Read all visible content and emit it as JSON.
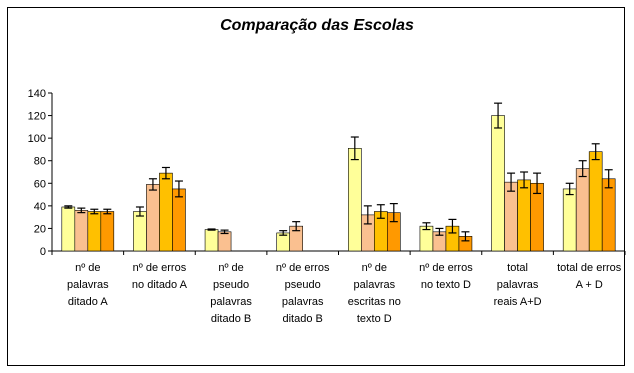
{
  "chart_data": {
    "type": "bar",
    "title": "Comparação das Escolas",
    "xlabel": "",
    "ylabel": "",
    "ylim": [
      0,
      140
    ],
    "yticks": [
      "0",
      "20",
      "40",
      "60",
      "80",
      "100",
      "120",
      "140"
    ],
    "grid": false,
    "legend": "none",
    "categories": [
      [
        "nº de",
        "palavras",
        "ditado A"
      ],
      [
        "nº de erros",
        "no ditado A"
      ],
      [
        "nº de",
        "pseudo",
        "palavras",
        "ditado B"
      ],
      [
        "nº de erros",
        "pseudo",
        "palavras",
        "ditado B"
      ],
      [
        "nº de",
        "palavras",
        "escritas no",
        "texto D"
      ],
      [
        "nº de erros",
        "no texto D"
      ],
      [
        "total",
        "palavras",
        "reais A+D"
      ],
      [
        "total de erros",
        "A + D"
      ]
    ],
    "series": [
      {
        "color": "#ffff99",
        "values": [
          39,
          35,
          19,
          16,
          91,
          22,
          120,
          55
        ],
        "errors": [
          1,
          4,
          0.5,
          2,
          10,
          3,
          11,
          5
        ]
      },
      {
        "color": "#fac090",
        "values": [
          36,
          59,
          17,
          22,
          32,
          17,
          61,
          73
        ],
        "errors": [
          2,
          5,
          1.5,
          4,
          8,
          3,
          8,
          7
        ]
      },
      {
        "color": "#ffc000",
        "values": [
          35,
          69,
          0,
          0,
          35,
          22,
          63,
          88
        ],
        "errors": [
          2,
          5,
          0,
          0,
          6,
          6,
          7,
          7
        ]
      },
      {
        "color": "#ff9900",
        "values": [
          35,
          55,
          0,
          0,
          34,
          13,
          60,
          64
        ],
        "errors": [
          2,
          7,
          0,
          0,
          8,
          4,
          9,
          8
        ]
      }
    ]
  }
}
